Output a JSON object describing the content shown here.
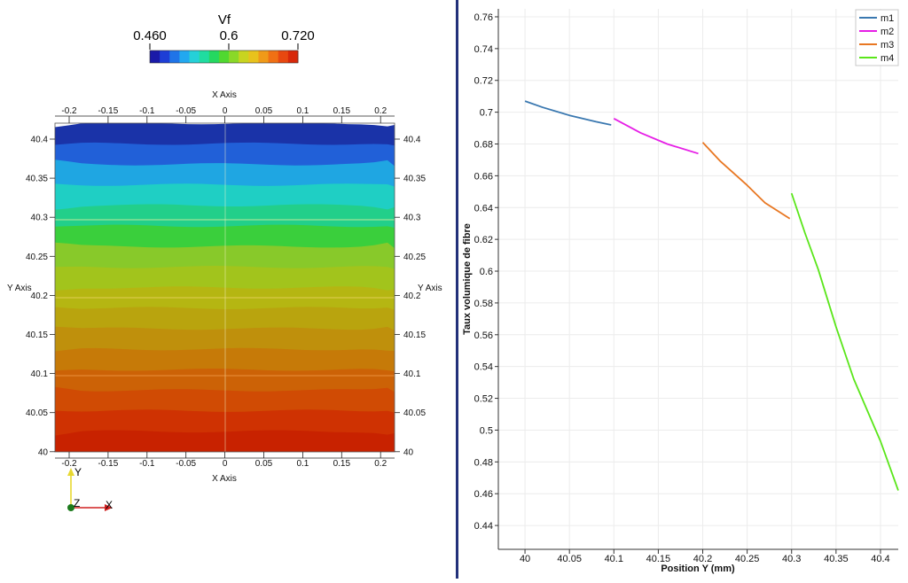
{
  "colorbar": {
    "title": "Vf",
    "labels": [
      "0.460",
      "0.6",
      "0.720"
    ],
    "colors": [
      "#1a1aa8",
      "#1e3ed6",
      "#1f74e8",
      "#22a8f0",
      "#25d0d8",
      "#20dca0",
      "#25d860",
      "#50d830",
      "#8ad828",
      "#c8d420",
      "#e8c21c",
      "#f09a18",
      "#f07014",
      "#e84810",
      "#d8280a"
    ]
  },
  "contour": {
    "x_axis_title": "X Axis",
    "y_axis_title": "Y Axis",
    "x_ticks": [
      "-0.2",
      "-0.15",
      "-0.1",
      "-0.05",
      "0",
      "0.05",
      "0.1",
      "0.15",
      "0.2"
    ],
    "y_ticks": [
      "40.4",
      "40.35",
      "40.3",
      "40.25",
      "40.2",
      "40.15",
      "40.1",
      "40.05",
      "40"
    ],
    "bands": [
      "#1a33a8",
      "#2160d8",
      "#1fa6e2",
      "#1fcfc4",
      "#22cf8a",
      "#3acf3c",
      "#88c92a",
      "#a2c41c",
      "#b5b612",
      "#b9a40e",
      "#bf900c",
      "#c67a08",
      "#cc6206",
      "#d04b04",
      "#cf3202",
      "#c82200"
    ]
  },
  "triad": {
    "y": "Y",
    "z": "Z",
    "x": "X"
  },
  "chart_data": {
    "type": "line",
    "xlabel": "Position Y (mm)",
    "ylabel": "Taux volumique de fibre",
    "xlim": [
      39.97,
      40.42
    ],
    "ylim": [
      0.425,
      0.765
    ],
    "x_ticks": [
      "40",
      "40.05",
      "40.1",
      "40.15",
      "40.2",
      "40.25",
      "40.3",
      "40.35",
      "40.4"
    ],
    "y_ticks": [
      "0.44",
      "0.46",
      "0.48",
      "0.5",
      "0.52",
      "0.54",
      "0.56",
      "0.58",
      "0.6",
      "0.62",
      "0.64",
      "0.66",
      "0.68",
      "0.7",
      "0.72",
      "0.74",
      "0.76"
    ],
    "grid": true,
    "legend_position": "top-right",
    "series": [
      {
        "name": "m1",
        "color": "#3a78b0",
        "points": [
          [
            40.0,
            0.707
          ],
          [
            40.02,
            0.703
          ],
          [
            40.05,
            0.698
          ],
          [
            40.08,
            0.694
          ],
          [
            40.097,
            0.692
          ]
        ]
      },
      {
        "name": "m2",
        "color": "#e61ee6",
        "points": [
          [
            40.1,
            0.696
          ],
          [
            40.13,
            0.687
          ],
          [
            40.16,
            0.68
          ],
          [
            40.195,
            0.674
          ]
        ]
      },
      {
        "name": "m3",
        "color": "#e87722",
        "points": [
          [
            40.2,
            0.681
          ],
          [
            40.22,
            0.669
          ],
          [
            40.25,
            0.654
          ],
          [
            40.27,
            0.643
          ],
          [
            40.298,
            0.633
          ]
        ]
      },
      {
        "name": "m4",
        "color": "#5ae61a",
        "points": [
          [
            40.3,
            0.649
          ],
          [
            40.315,
            0.624
          ],
          [
            40.33,
            0.601
          ],
          [
            40.35,
            0.565
          ],
          [
            40.37,
            0.532
          ],
          [
            40.4,
            0.493
          ],
          [
            40.42,
            0.462
          ]
        ]
      }
    ]
  }
}
